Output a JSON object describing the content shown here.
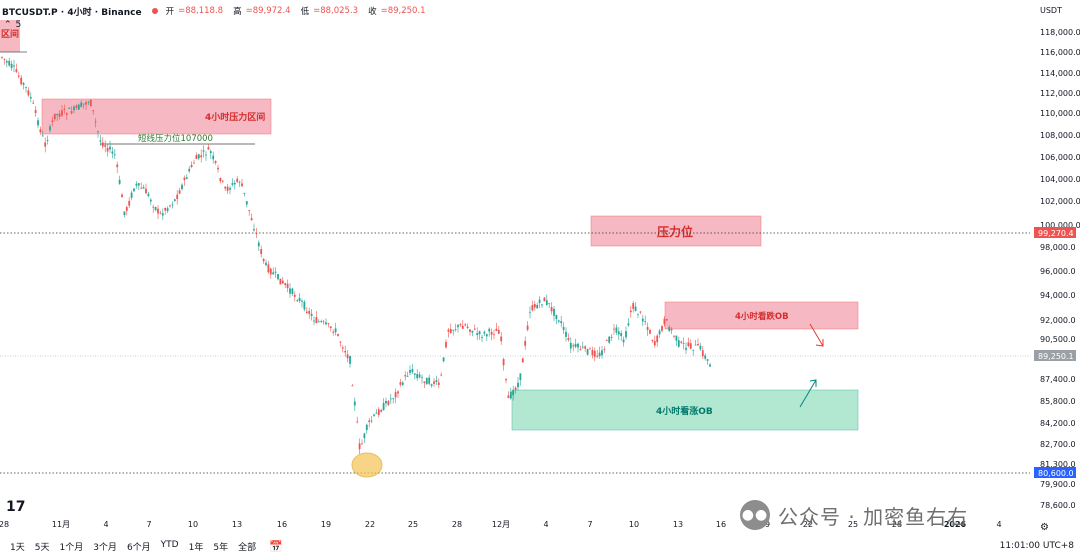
{
  "header": {
    "symbol": "BTCUSDT.P · 4小时 · Binance",
    "open_label": "开",
    "open": "=88,118.8",
    "high_label": "高",
    "high": "=89,972.4",
    "low_label": "低",
    "low": "=88,025.3",
    "close_label": "收",
    "close": "=89,250.1",
    "collapse_icon": "chevron-up-icon",
    "indicator_count": "5",
    "currency": "USDT"
  },
  "price_axis": {
    "labels": [
      "118,000.0",
      "116,000.0",
      "114,000.0",
      "112,000.0",
      "110,000.0",
      "108,000.0",
      "106,000.0",
      "104,000.0",
      "102,000.0",
      "100,000.0",
      "98,000.0",
      "96,000.0",
      "94,000.0",
      "92,000.0",
      "90,500.0",
      "87,400.0",
      "85,800.0",
      "84,200.0",
      "82,700.0",
      "81,300.0",
      "79,900.0",
      "78,600.0"
    ],
    "badges": [
      {
        "label": "99,270.4",
        "color": "#ef5350"
      },
      {
        "label": "89,250.1",
        "color": "#9aa0a6"
      },
      {
        "label": "80,600.0",
        "color": "#2962ff"
      }
    ]
  },
  "time_axis": {
    "labels": [
      "28",
      "11月",
      "4",
      "7",
      "10",
      "13",
      "16",
      "19",
      "22",
      "25",
      "28",
      "12月",
      "4",
      "7",
      "10",
      "13",
      "16",
      "19",
      "22",
      "25",
      "28",
      "2026",
      "4"
    ]
  },
  "zones": {
    "tl_label": "区间",
    "resist_4h": "4小时压力区间",
    "short_resist": "短线压力位107000",
    "resist": "压力位",
    "bear_ob": "4小时看跌OB",
    "bull_ob": "4小时看涨OB"
  },
  "colors": {
    "up": "#26a69a",
    "down": "#ef5350",
    "resist_fill": "#f4a7b3",
    "bull_fill": "#9fe3c6"
  },
  "toolbar": {
    "ranges": [
      "1天",
      "5天",
      "1个月",
      "3个月",
      "6个月",
      "YTD",
      "1年",
      "5年",
      "全部"
    ],
    "calendar_icon": "calendar-icon",
    "time": "11:01:00 UTC+8"
  },
  "logo": "TradingView",
  "logo_glyph": "17",
  "settings_icon": "gear-icon",
  "watermark": {
    "icon": "wechat-icon",
    "text": "公众号 · 加密鱼右右"
  }
}
